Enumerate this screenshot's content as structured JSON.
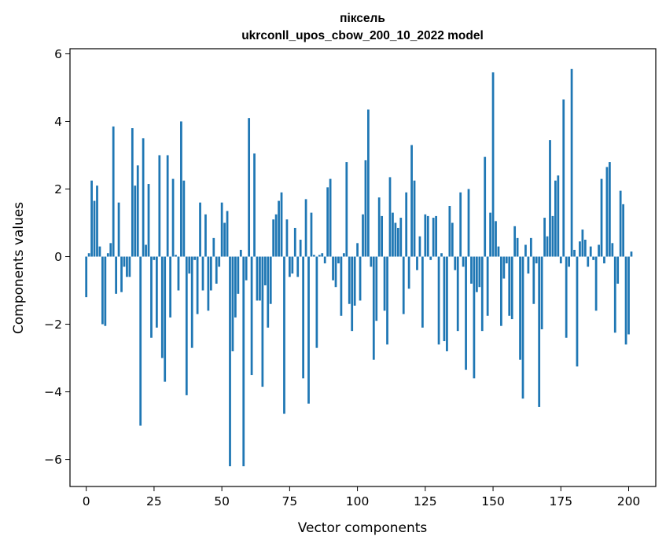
{
  "chart_data": {
    "type": "bar",
    "title": "піксель",
    "subtitle": "ukrconll_upos_cbow_200_10_2022 model",
    "xlabel": "Vector components",
    "ylabel": "Components values",
    "xlim": [
      -6,
      210
    ],
    "ylim": [
      -6.8,
      6.15
    ],
    "xticks": [
      0,
      25,
      50,
      75,
      100,
      125,
      150,
      175,
      200
    ],
    "yticks": [
      -6,
      -4,
      -2,
      0,
      2,
      4,
      6
    ],
    "xtick_labels": [
      "0",
      "25",
      "50",
      "75",
      "100",
      "125",
      "150",
      "175",
      "200"
    ],
    "ytick_labels": [
      "−6",
      "−4",
      "−2",
      "0",
      "2",
      "4",
      "6"
    ],
    "bar_color": "#1f77b4",
    "grid": false,
    "values": [
      -1.2,
      0.1,
      2.25,
      1.65,
      2.1,
      0.3,
      -2.0,
      -2.05,
      0.1,
      0.4,
      3.85,
      -1.1,
      1.6,
      -1.05,
      -0.3,
      -0.6,
      -0.6,
      3.8,
      2.1,
      2.7,
      -5.0,
      3.5,
      0.35,
      2.15,
      -2.4,
      -0.1,
      -2.1,
      3.0,
      -3.0,
      -3.7,
      3.0,
      -1.8,
      2.3,
      0.05,
      -1.0,
      4.0,
      2.25,
      -4.1,
      -0.5,
      -2.7,
      -0.1,
      -1.7,
      1.6,
      -1.0,
      1.25,
      -1.6,
      -1.0,
      0.55,
      -0.8,
      -0.3,
      1.6,
      1.0,
      1.35,
      -6.2,
      -2.8,
      -1.8,
      -1.1,
      0.2,
      -6.2,
      -0.7,
      4.1,
      -3.5,
      3.05,
      -1.3,
      -1.3,
      -3.85,
      -0.85,
      -2.1,
      -1.4,
      1.1,
      1.25,
      1.65,
      1.9,
      -4.65,
      1.1,
      -0.6,
      -0.5,
      0.85,
      -0.6,
      0.5,
      -3.6,
      1.7,
      -4.35,
      1.3,
      0.05,
      -2.7,
      0.05,
      0.1,
      -0.2,
      2.05,
      2.3,
      -0.7,
      -0.9,
      -0.2,
      -1.75,
      0.1,
      2.8,
      -1.4,
      -2.2,
      -1.45,
      0.4,
      -1.3,
      1.25,
      2.85,
      4.35,
      -0.3,
      -3.05,
      -1.9,
      1.75,
      1.2,
      -1.6,
      -2.6,
      2.35,
      1.3,
      1.0,
      0.85,
      1.15,
      -1.7,
      1.9,
      -0.95,
      3.3,
      2.25,
      -0.4,
      0.6,
      -2.1,
      1.25,
      1.2,
      -0.1,
      1.15,
      1.2,
      -2.6,
      0.1,
      -2.5,
      -2.8,
      1.5,
      1.0,
      -0.4,
      -2.2,
      1.9,
      -0.3,
      -3.35,
      2.0,
      -0.8,
      -3.6,
      -1.05,
      -0.9,
      -2.2,
      2.95,
      -1.75,
      1.3,
      5.45,
      1.05,
      0.3,
      -2.05,
      -0.65,
      -0.2,
      -1.75,
      -1.85,
      0.9,
      0.55,
      -3.05,
      -4.2,
      0.35,
      -0.5,
      0.55,
      -1.4,
      -0.2,
      -4.45,
      -2.15,
      1.15,
      0.6,
      3.45,
      1.2,
      2.25,
      2.4,
      -0.2,
      4.65,
      -2.4,
      -0.3,
      5.55,
      0.2,
      -3.25,
      0.45,
      0.8,
      0.5,
      -0.3,
      0.3,
      -0.1,
      -1.6,
      0.35,
      2.3,
      -0.2,
      2.65,
      2.8,
      0.4,
      -2.25,
      -0.8,
      1.95,
      1.55,
      -2.6,
      -2.3,
      0.15
    ]
  }
}
